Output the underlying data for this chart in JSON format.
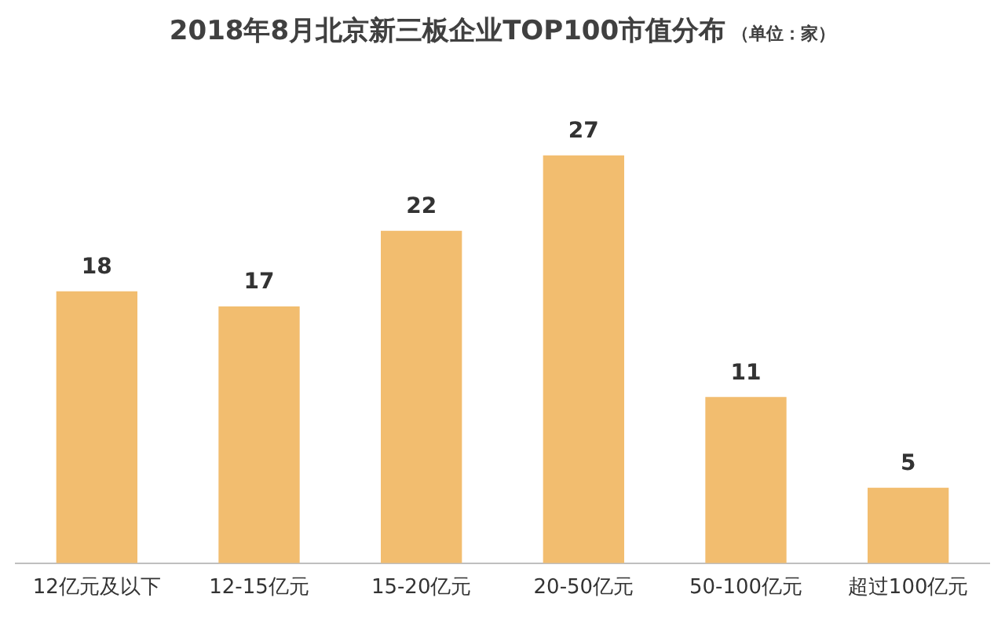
{
  "chart_data": {
    "type": "bar",
    "title": "2018年8月北京新三板企业TOP100市值分布",
    "subtitle": "（单位：家）",
    "categories": [
      "12亿元及以下",
      "12-15亿元",
      "15-20亿元",
      "20-50亿元",
      "50-100亿元",
      "超过100亿元"
    ],
    "values": [
      18,
      17,
      22,
      27,
      11,
      5
    ],
    "color": "#f2bd6f",
    "data_labels": true,
    "grid": false,
    "legend": false
  }
}
